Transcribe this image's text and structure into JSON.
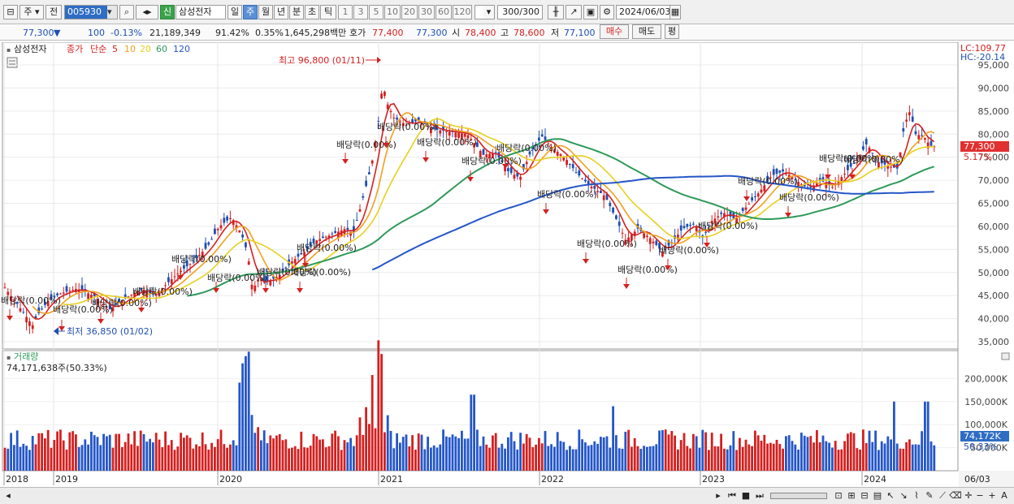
{
  "toolbar": {
    "period_type": "주",
    "prev_label": "전",
    "stock_code": "005930",
    "credit_badge": "신",
    "stock_name": "삼성전자",
    "timeframes": [
      "일",
      "주",
      "월",
      "년",
      "분",
      "초",
      "틱"
    ],
    "active_timeframe": "주",
    "intervals": [
      "1",
      "3",
      "5",
      "10",
      "20",
      "30",
      "60",
      "120"
    ],
    "count_display": "300",
    "count_total": "/300",
    "date": "2024/06/03"
  },
  "info": {
    "price": "77,300",
    "direction": "▼",
    "change": "100",
    "change_pct": "-0.13%",
    "volume": "21,189,349",
    "vol_ratio": "91.42%",
    "turnover": "0.35%",
    "amount": "1,645,298백만",
    "quote_label": "호가",
    "ask": "77,400",
    "bid": "77,300",
    "open_label": "시",
    "open": "78,400",
    "high_label": "고",
    "high": "78,600",
    "low_label": "저",
    "low": "77,100",
    "buy_label": "매수",
    "sell_label": "매도",
    "eval_label": "평"
  },
  "legend": {
    "name": "삼성전자",
    "close_label": "종가",
    "ma_label": "단순",
    "ma": [
      {
        "period": "5",
        "color": "#d42020"
      },
      {
        "period": "10",
        "color": "#f0a020"
      },
      {
        "period": "20",
        "color": "#e8d020"
      },
      {
        "period": "60",
        "color": "#2e9a5a"
      },
      {
        "period": "120",
        "color": "#2456c8"
      }
    ]
  },
  "volume_legend": {
    "title": "거래량",
    "value": "74,171,638주(50.33%)"
  },
  "axis": {
    "lc": "LC:109.77",
    "hc": "HC:-20.14",
    "price_ticks": [
      "95,000",
      "90,000",
      "85,000",
      "80,000",
      "75,000",
      "70,000",
      "65,000",
      "60,000",
      "55,000",
      "50,000",
      "45,000",
      "40,000",
      "35,000"
    ],
    "current_price": "77,300",
    "current_pct": "5.17%",
    "volume_ticks": [
      "200,000K",
      "150,000K",
      "100,000K",
      "50,000K"
    ],
    "current_volume": "74,172K",
    "current_volume_pct": "50.33%",
    "years": [
      "2018",
      "2019",
      "2020",
      "2021",
      "2022",
      "2023",
      "2024"
    ],
    "last_date": "06/03"
  },
  "annotations": {
    "high": "최고 96,800 (01/11)",
    "low": "최저 36,850 (01/02)",
    "dividends": [
      "배당락(0.00%)",
      "배당락(0.00%)",
      "배당락(0.00%)",
      "배당락(0.00%)",
      "배당락(0.00%)",
      "배당락(0.00%)",
      "배당락(0.00%)",
      "배당락(0.00%)",
      "배당락(0.00%)",
      "배당락(0.00%)",
      "배당락(0.00%)",
      "배당락(0.00%)",
      "배당락(0.00%)",
      "배당락(0.00%)",
      "배당락(0.00%)",
      "배당락(0.00%)",
      "배당락(0.00%)",
      "배당락(0.00%)",
      "배당락(0.00%)",
      "배당락(0.00%)",
      "배당락(0.00%)",
      "배당락(0.00%)",
      "배당락(0.00%)"
    ]
  },
  "chart_data": {
    "type": "line",
    "x": [
      "2018",
      "2019",
      "2020",
      "2021",
      "2022",
      "2023",
      "2024"
    ],
    "series": [
      {
        "name": "종가",
        "values": [
          44000,
          38500,
          55500,
          83000,
          78000,
          58500,
          77300
        ]
      }
    ],
    "ylim": [
      35000,
      95000
    ],
    "high": {
      "value": 96800,
      "date": "01/11"
    },
    "low": {
      "value": 36850,
      "date": "01/02"
    }
  }
}
